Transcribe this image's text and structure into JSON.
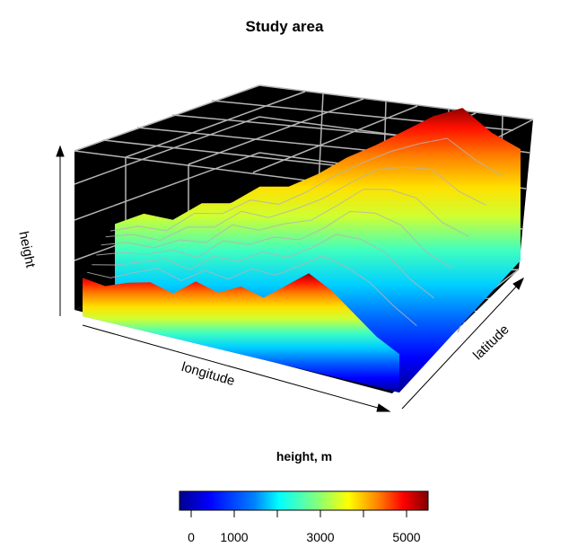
{
  "chart_data": {
    "type": "surface",
    "title": "Study area",
    "xlabel": "longitude",
    "ylabel": "latitude",
    "zlabel": "height",
    "colorbar": {
      "title": "height, m",
      "range": [
        0,
        5500
      ],
      "ticks": [
        0,
        1000,
        2000,
        3000,
        4000,
        5000
      ],
      "tick_labels": [
        "0",
        "1000",
        "",
        "3000",
        "",
        "5000"
      ],
      "colors": [
        "#00008f",
        "#0000ff",
        "#0080ff",
        "#00ffff",
        "#80ff80",
        "#ffff00",
        "#ff8000",
        "#ff0000",
        "#800000"
      ]
    },
    "box_background": "#000000",
    "grid": true,
    "grid_color": "#b4b4b4",
    "contour_color": "#b4b4b4",
    "surface_profiles": [
      {
        "latitude": "front",
        "heights": [
          500,
          450,
          600,
          700,
          600,
          900,
          800,
          1000,
          900,
          1200,
          1500,
          1300,
          1000,
          700,
          500
        ]
      },
      {
        "latitude": "back",
        "heights": [
          2200,
          2500,
          2000,
          2600,
          2400,
          3000,
          2800,
          3200,
          3800,
          4200,
          4700,
          5200,
          5400,
          4000,
          3000
        ]
      }
    ]
  }
}
